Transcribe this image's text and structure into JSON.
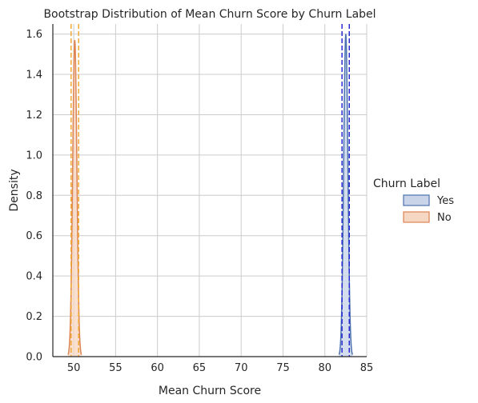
{
  "chart_data": {
    "type": "area",
    "title": "Bootstrap Distribution of Mean Churn Score by Churn Label",
    "xlabel": "Mean Churn Score",
    "ylabel": "Density",
    "xlim": [
      47.5,
      85.0
    ],
    "ylim": [
      0.0,
      1.65
    ],
    "xticks": [
      50,
      55,
      60,
      65,
      70,
      75,
      80,
      85
    ],
    "yticks": [
      0.0,
      0.2,
      0.4,
      0.6,
      0.8,
      1.0,
      1.2,
      1.4,
      1.6
    ],
    "grid": true,
    "legend": {
      "title": "Churn Label",
      "placement": "right",
      "entries": [
        "Yes",
        "No"
      ]
    },
    "series": [
      {
        "name": "Yes",
        "kde": {
          "mean": 82.5,
          "sd": 0.25
        },
        "peak_density": 1.6,
        "ci_lines": [
          82.05,
          82.92
        ],
        "fill_color": "#c9d4e8",
        "edge_color": "#4c72b0",
        "ci_color": "#2b2bd6"
      },
      {
        "name": "No",
        "kde": {
          "mean": 50.12,
          "sd": 0.25
        },
        "peak_density": 1.57,
        "ci_lines": [
          49.68,
          50.58
        ],
        "fill_color": "#f6d7c3",
        "edge_color": "#dd8452",
        "ci_color": "#f0a834"
      }
    ]
  }
}
